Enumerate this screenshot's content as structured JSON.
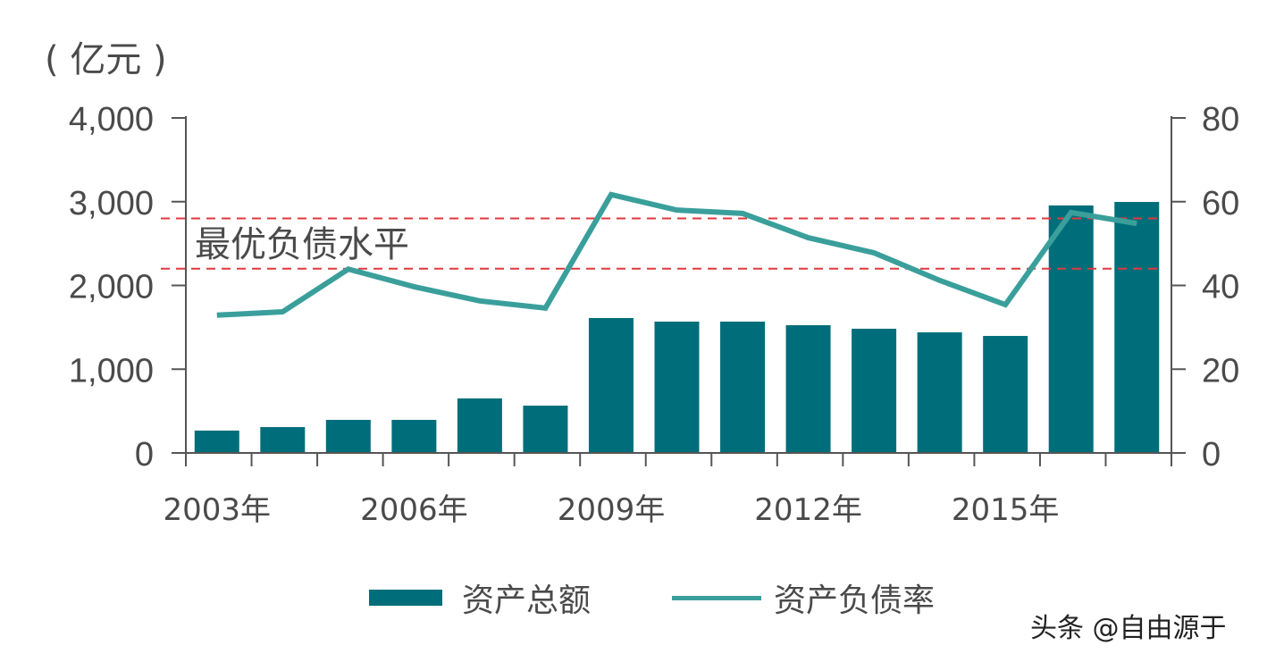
{
  "chart_data": {
    "type": "bar",
    "title": "",
    "left_unit_label": "( 亿元 )",
    "categories": [
      "2003",
      "2004",
      "2005",
      "2006",
      "2007",
      "2008",
      "2009",
      "2010",
      "2011",
      "2012",
      "2013",
      "2014",
      "2015",
      "2016",
      "2017"
    ],
    "x_tick_labels": [
      "2003年",
      "2006年",
      "2009年",
      "2012年",
      "2015年"
    ],
    "y_left": {
      "range": [
        0,
        4000
      ],
      "ticks": [
        "0",
        "1,000",
        "2,000",
        "3,000",
        "4,000"
      ]
    },
    "y_right": {
      "range": [
        0,
        80
      ],
      "ticks": [
        "0",
        "20",
        "40",
        "60",
        "80"
      ]
    },
    "series": [
      {
        "name": "资产总额",
        "type": "bar",
        "axis": "left",
        "color": "#006e7a",
        "values": [
          267,
          309,
          395,
          395,
          651,
          565,
          1611,
          1568,
          1568,
          1525,
          1483,
          1440,
          1397,
          2955,
          2997
        ]
      },
      {
        "name": "资产负债率",
        "type": "line",
        "axis": "right",
        "color": "#3a9f9b",
        "values": [
          32.9,
          33.7,
          43.9,
          39.7,
          36.3,
          34.6,
          61.7,
          58.0,
          57.2,
          51.4,
          47.8,
          41.2,
          35.4,
          57.4,
          54.8
        ]
      }
    ],
    "reference_band": {
      "label": "最优负债水平",
      "axis": "right",
      "lower": 44,
      "upper": 56,
      "color": "#e0393e",
      "style": "dashed"
    },
    "grid": false,
    "legend_placement": "bottom"
  },
  "watermark": "头条 @自由源于"
}
